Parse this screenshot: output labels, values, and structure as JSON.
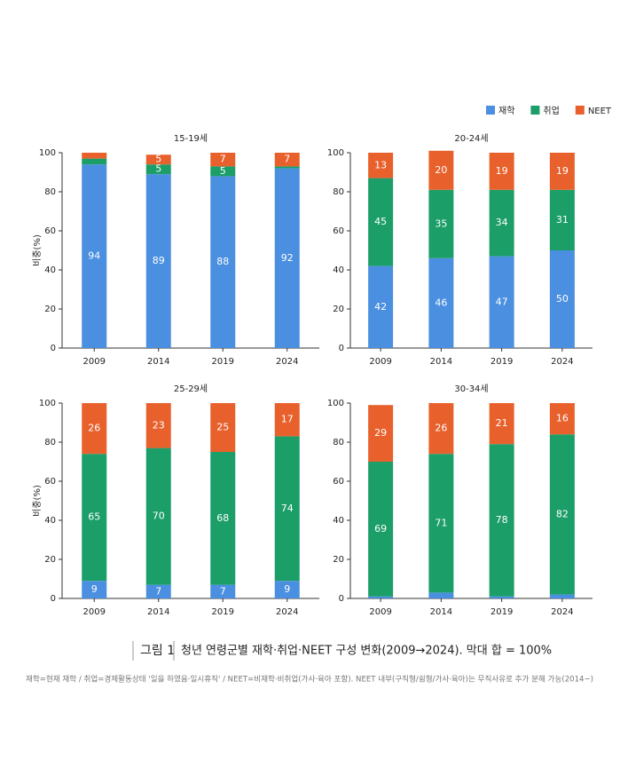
{
  "chart_data": [
    {
      "type": "bar",
      "stacked": true,
      "title": "15-19세",
      "ylabel": "비중(%)",
      "categories": [
        "2009",
        "2014",
        "2019",
        "2024"
      ],
      "ylim": [
        0,
        100
      ],
      "yticks": [
        0,
        20,
        40,
        60,
        80,
        100
      ],
      "series": [
        {
          "name": "재학",
          "color": "#4a8fe0",
          "values": [
            94,
            89,
            88,
            92
          ],
          "value_labels": [
            "94",
            "89",
            "88",
            "92"
          ]
        },
        {
          "name": "취업",
          "color": "#1c9e69",
          "values": [
            3,
            5,
            5,
            1
          ],
          "value_labels": [
            null,
            "5",
            "5",
            null
          ]
        },
        {
          "name": "NEET",
          "color": "#e8612c",
          "values": [
            3,
            5,
            7,
            7
          ],
          "value_labels": [
            null,
            "5",
            "7",
            "7"
          ]
        }
      ]
    },
    {
      "type": "bar",
      "stacked": true,
      "title": "20-24세",
      "categories": [
        "2009",
        "2014",
        "2019",
        "2024"
      ],
      "ylim": [
        0,
        100
      ],
      "yticks": [
        0,
        20,
        40,
        60,
        80,
        100
      ],
      "series": [
        {
          "name": "재학",
          "color": "#4a8fe0",
          "values": [
            42,
            46,
            47,
            50
          ],
          "value_labels": [
            "42",
            "46",
            "47",
            "50"
          ]
        },
        {
          "name": "취업",
          "color": "#1c9e69",
          "values": [
            45,
            35,
            34,
            31
          ],
          "value_labels": [
            "45",
            "35",
            "34",
            "31"
          ]
        },
        {
          "name": "NEET",
          "color": "#e8612c",
          "values": [
            13,
            20,
            19,
            19
          ],
          "value_labels": [
            "13",
            "20",
            "19",
            "19"
          ]
        }
      ]
    },
    {
      "type": "bar",
      "stacked": true,
      "title": "25-29세",
      "ylabel": "비중(%)",
      "categories": [
        "2009",
        "2014",
        "2019",
        "2024"
      ],
      "ylim": [
        0,
        100
      ],
      "yticks": [
        0,
        20,
        40,
        60,
        80,
        100
      ],
      "series": [
        {
          "name": "재학",
          "color": "#4a8fe0",
          "values": [
            9,
            7,
            7,
            9
          ],
          "value_labels": [
            "9",
            "7",
            "7",
            "9"
          ]
        },
        {
          "name": "취업",
          "color": "#1c9e69",
          "values": [
            65,
            70,
            68,
            74
          ],
          "value_labels": [
            "65",
            "70",
            "68",
            "74"
          ]
        },
        {
          "name": "NEET",
          "color": "#e8612c",
          "values": [
            26,
            23,
            25,
            17
          ],
          "value_labels": [
            "26",
            "23",
            "25",
            "17"
          ]
        }
      ]
    },
    {
      "type": "bar",
      "stacked": true,
      "title": "30-34세",
      "categories": [
        "2009",
        "2014",
        "2019",
        "2024"
      ],
      "ylim": [
        0,
        100
      ],
      "yticks": [
        0,
        20,
        40,
        60,
        80,
        100
      ],
      "series": [
        {
          "name": "재학",
          "color": "#4a8fe0",
          "values": [
            1,
            3,
            1,
            2
          ],
          "value_labels": [
            null,
            null,
            null,
            null
          ]
        },
        {
          "name": "취업",
          "color": "#1c9e69",
          "values": [
            69,
            71,
            78,
            82
          ],
          "value_labels": [
            "69",
            "71",
            "78",
            "82"
          ]
        },
        {
          "name": "NEET",
          "color": "#e8612c",
          "values": [
            29,
            26,
            21,
            16
          ],
          "value_labels": [
            "29",
            "26",
            "21",
            "16"
          ]
        }
      ]
    }
  ],
  "caption": {
    "label": "그림 1",
    "title": "청년 연령군별 재학·취업·NEET 구성 변화(2009→2024). 막대 합 = 100%"
  },
  "note": "재학=현재 재학 / 취업=경제활동상태 '일을 하였음·일시휴직' / NEET=비재학·비취업(가사·육아 포함). NEET 내부(구직형/쉼형/가사·육아)는 무직사유로 추가 분해 가능(2014~)"
}
